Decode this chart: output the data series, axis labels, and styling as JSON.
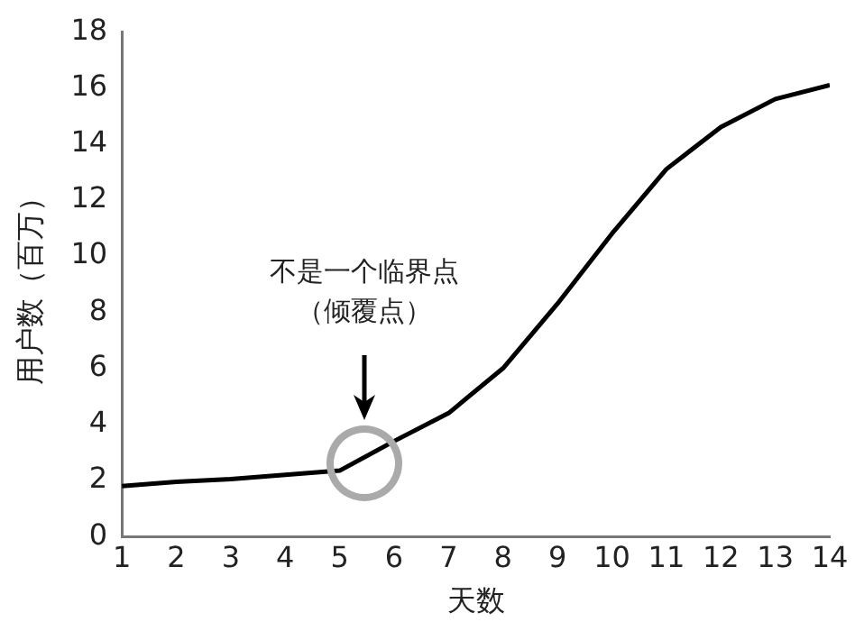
{
  "chart_data": {
    "type": "line",
    "xlabel": "天数",
    "ylabel": "用户数（百万）",
    "x": [
      1,
      2,
      3,
      4,
      5,
      6,
      7,
      8,
      9,
      10,
      11,
      12,
      13,
      14
    ],
    "series": [
      {
        "color": "#000000",
        "values": [
          1.8,
          1.95,
          2.05,
          2.2,
          2.35,
          3.4,
          4.4,
          6.0,
          8.3,
          10.8,
          13.1,
          14.6,
          15.6,
          16.1
        ]
      }
    ],
    "xlim": [
      1,
      14
    ],
    "xticks": [
      1,
      2,
      3,
      4,
      5,
      6,
      7,
      8,
      9,
      10,
      11,
      12,
      13,
      14
    ],
    "ylim": [
      0,
      18
    ],
    "yticks": [
      0,
      2,
      4,
      6,
      8,
      10,
      12,
      14,
      16,
      18
    ],
    "grid": false,
    "legend": false,
    "marker": "none",
    "line_style": "solid",
    "annotations": [
      "不是一个临界点（倾覆点）"
    ]
  }
}
